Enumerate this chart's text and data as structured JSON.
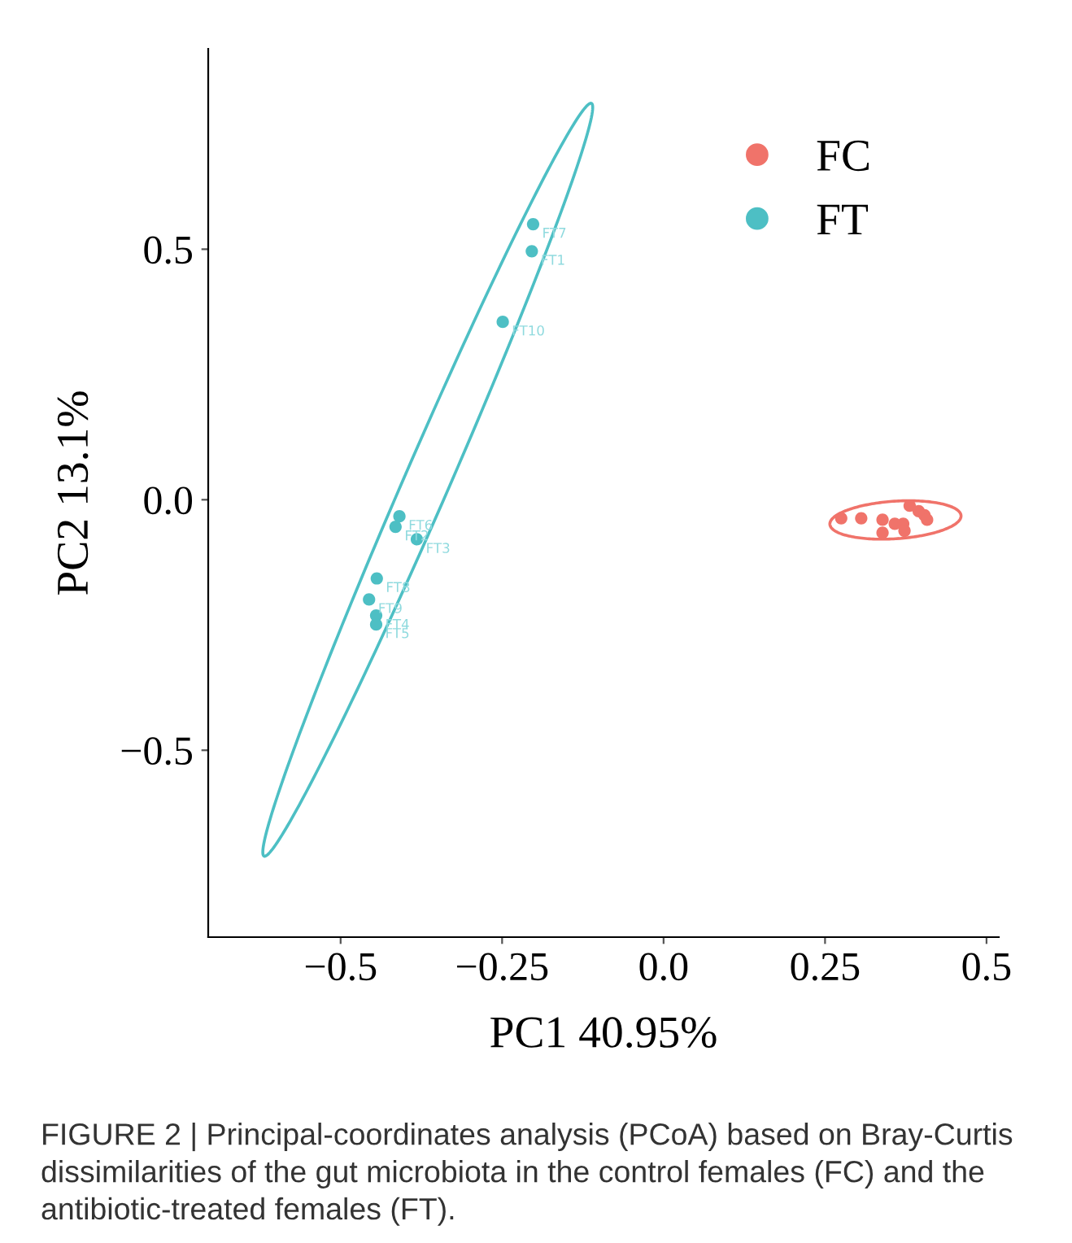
{
  "chart_data": {
    "type": "scatter",
    "xlabel": "PC1 40.95%",
    "ylabel": "PC2 13.1%",
    "xlim": [
      -0.705,
      0.519
    ],
    "ylim": [
      -0.873,
      0.9
    ],
    "xticks": [
      {
        "value": -0.5,
        "label": "−0.5"
      },
      {
        "value": -0.25,
        "label": "−0.25"
      },
      {
        "value": 0.0,
        "label": "0.0"
      },
      {
        "value": 0.25,
        "label": "0.25"
      },
      {
        "value": 0.5,
        "label": "0.5"
      }
    ],
    "yticks": [
      {
        "value": -0.5,
        "label": "−0.5"
      },
      {
        "value": 0.0,
        "label": "0.0"
      },
      {
        "value": 0.5,
        "label": "0.5"
      }
    ],
    "grid": false,
    "legend": "top right",
    "marker": "circle",
    "series": [
      {
        "name": "FC",
        "color": "#f0736a",
        "x": [
          0.275,
          0.306,
          0.339,
          0.339,
          0.358,
          0.371,
          0.373,
          0.381,
          0.395,
          0.404,
          0.408
        ],
        "values": [
          -0.037,
          -0.037,
          -0.04,
          -0.066,
          -0.048,
          -0.048,
          -0.062,
          -0.012,
          -0.023,
          -0.031,
          -0.04
        ]
      },
      {
        "name": "FT",
        "color": "#4dbfc4",
        "x": [
          -0.202,
          -0.204,
          -0.249,
          -0.409,
          -0.415,
          -0.382,
          -0.444,
          -0.456,
          -0.445,
          -0.445
        ],
        "values": [
          0.55,
          0.496,
          0.355,
          -0.033,
          -0.054,
          -0.079,
          -0.157,
          -0.199,
          -0.231,
          -0.249
        ]
      }
    ],
    "annotations": [
      {
        "text": "FT7",
        "x": -0.202,
        "y": 0.55
      },
      {
        "text": "FT1",
        "x": -0.204,
        "y": 0.496
      },
      {
        "text": "FT10",
        "x": -0.249,
        "y": 0.355
      },
      {
        "text": "FT6",
        "x": -0.409,
        "y": -0.033
      },
      {
        "text": "FT2",
        "x": -0.415,
        "y": -0.054
      },
      {
        "text": "FT3",
        "x": -0.382,
        "y": -0.079
      },
      {
        "text": "FT8",
        "x": -0.444,
        "y": -0.157
      },
      {
        "text": "FT9",
        "x": -0.456,
        "y": -0.199
      },
      {
        "text": "FT4",
        "x": -0.445,
        "y": -0.231
      },
      {
        "text": "FT5",
        "x": -0.445,
        "y": -0.249
      },
      "FIGURE 2 | Principal-coordinates analysis (PCoA) based on Bray-Curtis dissimilarities of the gut microbiota in the control females (FC) and the antibiotic-treated females (FT)."
    ]
  }
}
